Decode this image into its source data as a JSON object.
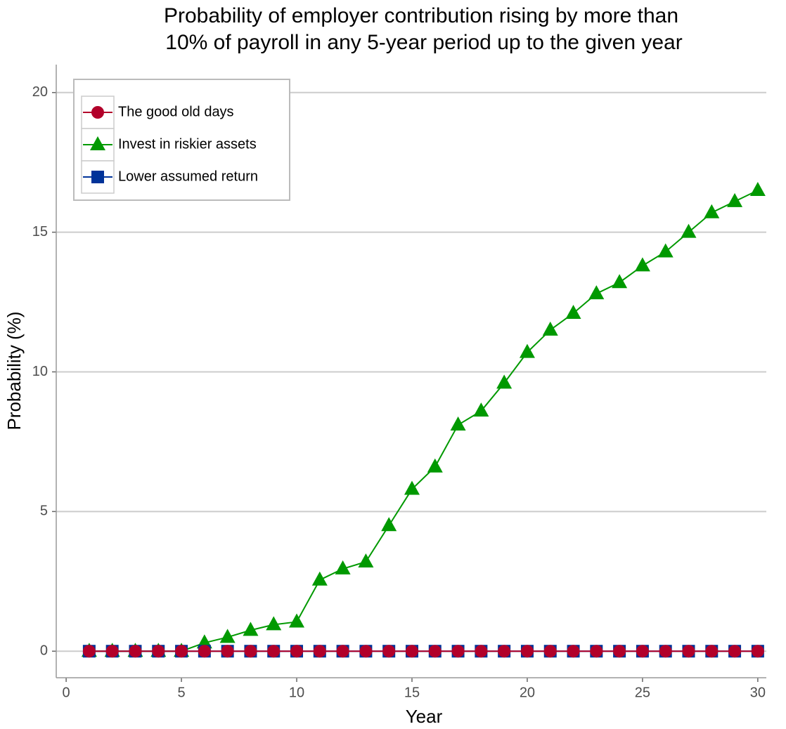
{
  "chart_data": {
    "type": "line",
    "title": [
      "Probability of employer contribution rising by more than",
      "10% of payroll in any 5-year period up to the given year"
    ],
    "x_label": "Year",
    "y_label": "Probability (%)",
    "x": [
      1,
      2,
      3,
      4,
      5,
      6,
      7,
      8,
      9,
      10,
      11,
      12,
      13,
      14,
      15,
      16,
      17,
      18,
      19,
      20,
      21,
      22,
      23,
      24,
      25,
      26,
      27,
      28,
      29,
      30
    ],
    "series": [
      {
        "name": "The good old days",
        "color": "#b2002a",
        "marker": "circle",
        "values": [
          0,
          0,
          0,
          0,
          0,
          0,
          0,
          0,
          0,
          0,
          0,
          0,
          0,
          0,
          0,
          0,
          0,
          0,
          0,
          0,
          0,
          0,
          0,
          0,
          0,
          0,
          0,
          0,
          0,
          0
        ]
      },
      {
        "name": "Invest in riskier assets",
        "color": "#009900",
        "marker": "triangle",
        "values": [
          0,
          0,
          0,
          0,
          0,
          0.3,
          0.5,
          0.75,
          0.95,
          1.05,
          2.55,
          2.95,
          3.2,
          4.5,
          5.8,
          6.6,
          8.1,
          8.6,
          9.6,
          10.7,
          11.5,
          12.1,
          12.8,
          13.2,
          13.8,
          14.3,
          15.0,
          15.7,
          16.1,
          16.5
        ]
      },
      {
        "name": "Lower assumed return",
        "color": "#003399",
        "marker": "square",
        "values": [
          0,
          0,
          0,
          0,
          0,
          0,
          0,
          0,
          0,
          0,
          0,
          0,
          0,
          0,
          0,
          0,
          0,
          0,
          0,
          0,
          0,
          0,
          0,
          0,
          0,
          0,
          0,
          0,
          0,
          0
        ]
      }
    ],
    "xlim": [
      -0.43,
      30.37
    ],
    "ylim": [
      -0.95,
      21
    ],
    "xticks": [
      0,
      5,
      10,
      15,
      20,
      25,
      30
    ],
    "yticks": [
      0,
      5,
      10,
      15,
      20
    ],
    "grid": true,
    "legend": "top-left"
  }
}
